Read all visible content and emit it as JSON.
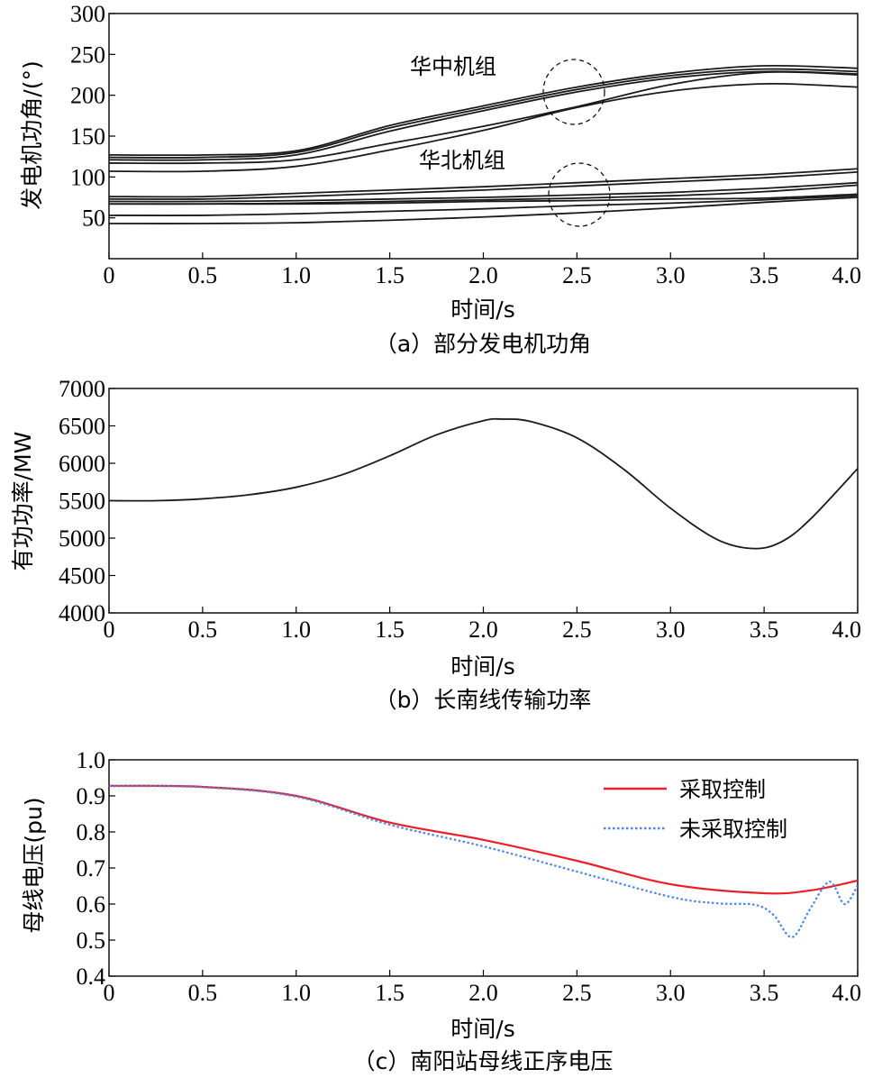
{
  "chart_data": [
    {
      "type": "line",
      "caption": "（a）部分发电机功角",
      "xlabel": "时间/s",
      "ylabel": "发电机功角/(°)",
      "xlim": [
        0,
        4.0
      ],
      "ylim": [
        0,
        300
      ],
      "xticks": [
        "0",
        "0.5",
        "1.0",
        "1.5",
        "2.0",
        "2.5",
        "3.0",
        "3.5",
        "4.0"
      ],
      "yticks": [
        "50",
        "100",
        "150",
        "200",
        "250",
        "300"
      ],
      "annotations": [
        {
          "text": "华中机组",
          "x": 2.4,
          "y": 218
        },
        {
          "text": "华北机组",
          "x": 2.4,
          "y": 112
        }
      ],
      "series": [
        {
          "name": "华中机组 1",
          "x": [
            0,
            0.5,
            1.0,
            1.5,
            2.0,
            2.5,
            3.0,
            3.5,
            4.0
          ],
          "values": [
            127,
            127,
            132,
            163,
            187,
            210,
            227,
            236,
            233
          ]
        },
        {
          "name": "华中机组 2",
          "x": [
            0,
            0.5,
            1.0,
            1.5,
            2.0,
            2.5,
            3.0,
            3.5,
            4.0
          ],
          "values": [
            124,
            124,
            130,
            160,
            184,
            207,
            224,
            232,
            229
          ]
        },
        {
          "name": "华中机组 3",
          "x": [
            0,
            0.5,
            1.0,
            1.5,
            2.0,
            2.5,
            3.0,
            3.5,
            4.0
          ],
          "values": [
            121,
            121,
            127,
            156,
            181,
            204,
            221,
            229,
            226
          ]
        },
        {
          "name": "华中机组 4",
          "x": [
            0,
            0.5,
            1.0,
            1.5,
            2.0,
            2.5,
            3.0,
            3.5,
            4.0
          ],
          "values": [
            117,
            117,
            121,
            141,
            162,
            186,
            213,
            228,
            225
          ]
        },
        {
          "name": "华中机组 5",
          "x": [
            0,
            0.5,
            1.0,
            1.5,
            2.0,
            2.5,
            3.0,
            3.5,
            4.0
          ],
          "values": [
            107,
            107,
            113,
            133,
            157,
            185,
            205,
            214,
            210
          ]
        },
        {
          "name": "华北机组 1",
          "x": [
            0,
            0.5,
            1.0,
            1.5,
            2.0,
            2.5,
            3.0,
            3.5,
            4.0
          ],
          "values": [
            76,
            76,
            80,
            84,
            88,
            93,
            98,
            103,
            110
          ]
        },
        {
          "name": "华北机组 2",
          "x": [
            0,
            0.5,
            1.0,
            1.5,
            2.0,
            2.5,
            3.0,
            3.5,
            4.0
          ],
          "values": [
            73,
            73,
            76,
            80,
            84,
            89,
            94,
            99,
            106
          ]
        },
        {
          "name": "华北机组 3",
          "x": [
            0,
            0.5,
            1.0,
            1.5,
            2.0,
            2.5,
            3.0,
            3.5,
            4.0
          ],
          "values": [
            70,
            70,
            71,
            73,
            75,
            78,
            81,
            86,
            93
          ]
        },
        {
          "name": "华北机组 4",
          "x": [
            0,
            0.5,
            1.0,
            1.5,
            2.0,
            2.5,
            3.0,
            3.5,
            4.0
          ],
          "values": [
            67,
            67,
            68,
            70,
            72,
            74,
            77,
            82,
            90
          ]
        },
        {
          "name": "华北机组 5",
          "x": [
            0,
            0.5,
            1.0,
            1.5,
            2.0,
            2.5,
            3.0,
            3.5,
            4.0
          ],
          "values": [
            67,
            67,
            67,
            68,
            70,
            71,
            73,
            74,
            79
          ]
        },
        {
          "name": "华北机组 6",
          "x": [
            0,
            0.5,
            1.0,
            1.5,
            2.0,
            2.5,
            3.0,
            3.5,
            4.0
          ],
          "values": [
            53,
            53,
            55,
            58,
            61,
            65,
            68,
            72,
            77
          ]
        },
        {
          "name": "华北机组 7",
          "x": [
            0,
            0.5,
            1.0,
            1.5,
            2.0,
            2.5,
            3.0,
            3.5,
            4.0
          ],
          "values": [
            43,
            43,
            44,
            47,
            51,
            56,
            62,
            69,
            75
          ]
        }
      ]
    },
    {
      "type": "line",
      "caption": "（b）长南线传输功率",
      "xlabel": "时间/s",
      "ylabel": "有功功率/MW",
      "xlim": [
        0,
        4.0
      ],
      "ylim": [
        4000,
        7000
      ],
      "xticks": [
        "0",
        "0.5",
        "1.0",
        "1.5",
        "2.0",
        "2.5",
        "3.0",
        "3.5",
        "4.0"
      ],
      "yticks": [
        "4000",
        "4500",
        "5000",
        "5500",
        "6000",
        "6500",
        "7000"
      ],
      "series": [
        {
          "name": "长南线传输功率",
          "x": [
            0,
            0.25,
            0.5,
            0.75,
            1.0,
            1.25,
            1.5,
            1.75,
            2.0,
            2.1,
            2.25,
            2.5,
            2.75,
            3.0,
            3.25,
            3.45,
            3.6,
            3.75,
            4.0
          ],
          "values": [
            5500,
            5500,
            5525,
            5580,
            5680,
            5850,
            6100,
            6380,
            6570,
            6590,
            6560,
            6340,
            5920,
            5400,
            4980,
            4860,
            4960,
            5260,
            5930
          ]
        }
      ]
    },
    {
      "type": "line",
      "caption": "（c）南阳站母线正序电压",
      "xlabel": "时间/s",
      "ylabel": "母线电压(pu)",
      "xlim": [
        0,
        4.0
      ],
      "ylim": [
        0.4,
        1.0
      ],
      "xticks": [
        "0",
        "0.5",
        "1.0",
        "1.5",
        "2.0",
        "2.5",
        "3.0",
        "3.5",
        "4.0"
      ],
      "yticks": [
        "0.4",
        "0.5",
        "0.6",
        "0.7",
        "0.8",
        "0.9",
        "1.0"
      ],
      "legend_position": "top-right",
      "series": [
        {
          "name": "采取控制",
          "color": "#e8202a",
          "x": [
            0,
            0.5,
            1.0,
            1.5,
            2.0,
            2.5,
            3.0,
            3.5,
            3.75,
            4.0
          ],
          "values": [
            0.928,
            0.925,
            0.9,
            0.826,
            0.778,
            0.72,
            0.655,
            0.63,
            0.638,
            0.665
          ]
        },
        {
          "name": "未采取控制",
          "color": "#4a86e8",
          "x": [
            0,
            0.5,
            1.0,
            1.5,
            2.0,
            2.5,
            3.0,
            3.25,
            3.45,
            3.55,
            3.65,
            3.75,
            3.85,
            3.93,
            4.0
          ],
          "values": [
            0.927,
            0.924,
            0.898,
            0.82,
            0.76,
            0.69,
            0.62,
            0.602,
            0.598,
            0.57,
            0.508,
            0.59,
            0.662,
            0.6,
            0.652
          ]
        }
      ]
    }
  ]
}
